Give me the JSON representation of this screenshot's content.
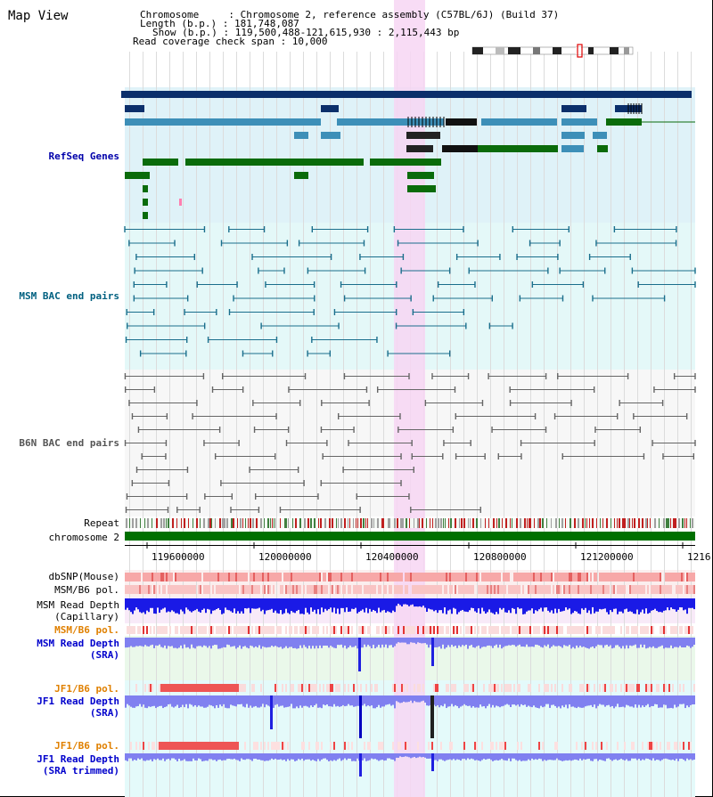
{
  "title": "Map View",
  "info": {
    "chromosome": "Chromosome     : Chromosome 2, reference assembly (C57BL/6J) (Build 37)",
    "length": "Length (b.p.) : 181,748,087",
    "show": "Show (b.p.) : 119,500,488-121,615,930 : 2,115,443 bp",
    "coverage": "Read coverage check span : 10,000"
  },
  "tracks": {
    "refseq": "RefSeq Genes",
    "msm_bac": "MSM BAC end pairs",
    "b6n_bac": "B6N BAC end pairs",
    "repeat": "Repeat",
    "chromosome": "chromosome 2",
    "dbsnp": "dbSNP(Mouse)",
    "msm_pol": "MSM/B6 pol.",
    "msm_depth_cap_1": "MSM Read Depth",
    "msm_depth_cap_2": "(Capillary)",
    "msm_pol_2": "MSM/B6 pol.",
    "msm_depth_sra_1": "MSM Read Depth",
    "msm_depth_sra_2": "(SRA)",
    "jf1_pol": "JF1/B6 pol.",
    "jf1_depth_sra_1": "JF1 Read Depth",
    "jf1_depth_sra_2": "(SRA)",
    "jf1_pol_2": "JF1/B6 pol.",
    "jf1_depth_trim_1": "JF1 Read Depth",
    "jf1_depth_trim_2": "(SRA trimmed)"
  },
  "axis": {
    "ticks": [
      "119600000",
      "120000000",
      "120400000",
      "120800000",
      "121200000",
      "1216"
    ]
  },
  "colors": {
    "refseq_dark": "#0b2f6b",
    "refseq_mid": "#3d8fb8",
    "refseq_green": "#0a6b0a",
    "msm_bac": "#1a6e8c",
    "b6n_bac": "#666666",
    "chromosome": "#007000",
    "highlight": "#f7d6f3",
    "depth_blue": "#1a1ae6",
    "depth_light": "#8080f0"
  }
}
